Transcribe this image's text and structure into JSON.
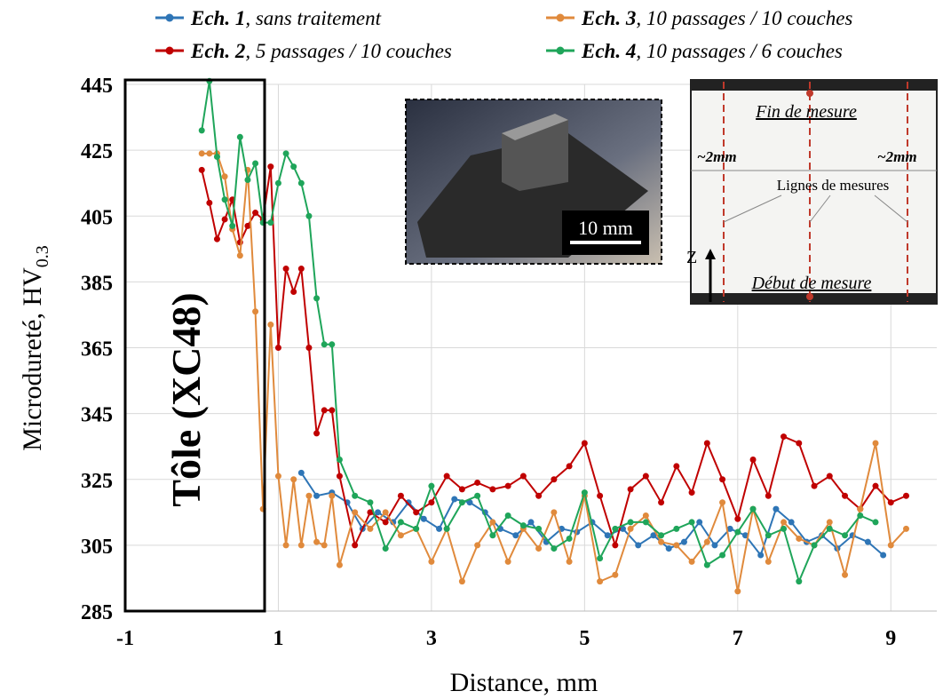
{
  "chart_data": {
    "type": "line",
    "x_label": "Distance, mm",
    "y_label": {
      "main": "Microdureté, HV",
      "sub": "0.3"
    },
    "xlim": [
      -1,
      9.6
    ],
    "ylim": [
      285,
      445
    ],
    "xticks": [
      -1,
      1,
      3,
      5,
      7,
      9
    ],
    "yticks": [
      285,
      305,
      325,
      345,
      365,
      385,
      405,
      425,
      445
    ],
    "grid": true,
    "annotations": {
      "region": "Tôle (XC48)",
      "scale_bar": "10 mm",
      "top_mark": "Fin de mesure",
      "left_width": "~2mm",
      "right_width": "~2mm",
      "lines": "Lignes de mesures",
      "axis_z": "Z",
      "bottom_mark": "Début de mesure"
    },
    "series": [
      {
        "name": "Ech. 1, sans traitement",
        "color": "#2e75b6",
        "x": [
          1.3,
          1.5,
          1.7,
          1.9,
          2.1,
          2.3,
          2.5,
          2.7,
          2.9,
          3.1,
          3.3,
          3.5,
          3.7,
          3.9,
          4.1,
          4.3,
          4.5,
          4.7,
          4.9,
          5.1,
          5.3,
          5.5,
          5.7,
          5.9,
          6.1,
          6.3,
          6.5,
          6.7,
          6.9,
          7.1,
          7.3,
          7.5,
          7.7,
          7.9,
          8.1,
          8.3,
          8.5,
          8.7,
          8.9
        ],
        "values": [
          327,
          320,
          321,
          318,
          310,
          315,
          312,
          318,
          313,
          310,
          319,
          318,
          315,
          310,
          308,
          312,
          306,
          310,
          309,
          312,
          308,
          310,
          305,
          308,
          304,
          306,
          312,
          305,
          310,
          308,
          302,
          316,
          312,
          306,
          308,
          304,
          308,
          306,
          302
        ]
      },
      {
        "name": "Ech. 2, 5 passages / 10 couches",
        "color": "#c00000",
        "x": [
          0,
          0.1,
          0.2,
          0.3,
          0.4,
          0.5,
          0.6,
          0.7,
          0.8,
          0.9,
          1.0,
          1.1,
          1.2,
          1.3,
          1.4,
          1.5,
          1.6,
          1.7,
          1.8,
          2.0,
          2.2,
          2.4,
          2.6,
          2.8,
          3.0,
          3.2,
          3.4,
          3.6,
          3.8,
          4.0,
          4.2,
          4.4,
          4.6,
          4.8,
          5.0,
          5.2,
          5.4,
          5.6,
          5.8,
          6.0,
          6.2,
          6.4,
          6.6,
          6.8,
          7.0,
          7.2,
          7.4,
          7.6,
          7.8,
          8.0,
          8.2,
          8.4,
          8.6,
          8.8,
          9.0,
          9.2
        ],
        "values": [
          419,
          409,
          398,
          404,
          410,
          397,
          402,
          406,
          404,
          420,
          365,
          389,
          382,
          389,
          365,
          339,
          346,
          346,
          326,
          305,
          315,
          312,
          320,
          315,
          318,
          326,
          322,
          324,
          322,
          323,
          326,
          320,
          325,
          329,
          336,
          320,
          305,
          322,
          326,
          318,
          329,
          321,
          336,
          325,
          313,
          331,
          320,
          338,
          336,
          323,
          326,
          320,
          316,
          323,
          318,
          320
        ]
      },
      {
        "name": "Ech. 3, 10 passages / 10 couches",
        "color": "#e08a3c",
        "x": [
          0,
          0.1,
          0.2,
          0.3,
          0.4,
          0.5,
          0.6,
          0.7,
          0.8,
          0.9,
          1.0,
          1.1,
          1.2,
          1.3,
          1.4,
          1.5,
          1.6,
          1.7,
          1.8,
          2.0,
          2.2,
          2.4,
          2.6,
          2.8,
          3.0,
          3.2,
          3.4,
          3.6,
          3.8,
          4.0,
          4.2,
          4.4,
          4.6,
          4.8,
          5.0,
          5.2,
          5.4,
          5.6,
          5.8,
          6.0,
          6.2,
          6.4,
          6.6,
          6.8,
          7.0,
          7.2,
          7.4,
          7.6,
          7.8,
          8.0,
          8.2,
          8.4,
          8.6,
          8.8,
          9.0,
          9.2
        ],
        "values": [
          424,
          424,
          424,
          417,
          401,
          393,
          419,
          376,
          316,
          372,
          326,
          305,
          325,
          305,
          320,
          306,
          305,
          320,
          299,
          315,
          310,
          315,
          308,
          310,
          300,
          310,
          294,
          305,
          312,
          300,
          310,
          304,
          315,
          300,
          320,
          294,
          296,
          310,
          314,
          306,
          305,
          300,
          306,
          318,
          291,
          316,
          300,
          312,
          307,
          305,
          312,
          296,
          316,
          336,
          305,
          310
        ]
      },
      {
        "name": "Ech. 4, 10 passages / 6 couches",
        "color": "#1fa55a",
        "x": [
          0,
          0.1,
          0.2,
          0.3,
          0.4,
          0.5,
          0.6,
          0.7,
          0.8,
          0.9,
          1.0,
          1.1,
          1.2,
          1.3,
          1.4,
          1.5,
          1.6,
          1.7,
          1.8,
          2.0,
          2.2,
          2.4,
          2.6,
          2.8,
          3.0,
          3.2,
          3.4,
          3.6,
          3.8,
          4.0,
          4.2,
          4.4,
          4.6,
          4.8,
          5.0,
          5.2,
          5.4,
          5.6,
          5.8,
          6.0,
          6.2,
          6.4,
          6.6,
          6.8,
          7.0,
          7.2,
          7.4,
          7.6,
          7.8,
          8.0,
          8.2,
          8.4,
          8.6,
          8.8
        ],
        "values": [
          431,
          446,
          423,
          410,
          402,
          429,
          416,
          421,
          403,
          403,
          415,
          424,
          420,
          415,
          405,
          380,
          366,
          366,
          331,
          320,
          318,
          304,
          312,
          310,
          323,
          310,
          318,
          320,
          308,
          314,
          311,
          310,
          304,
          307,
          321,
          301,
          310,
          312,
          312,
          308,
          310,
          312,
          299,
          302,
          309,
          316,
          308,
          310,
          294,
          305,
          310,
          308,
          314,
          312
        ]
      }
    ]
  }
}
